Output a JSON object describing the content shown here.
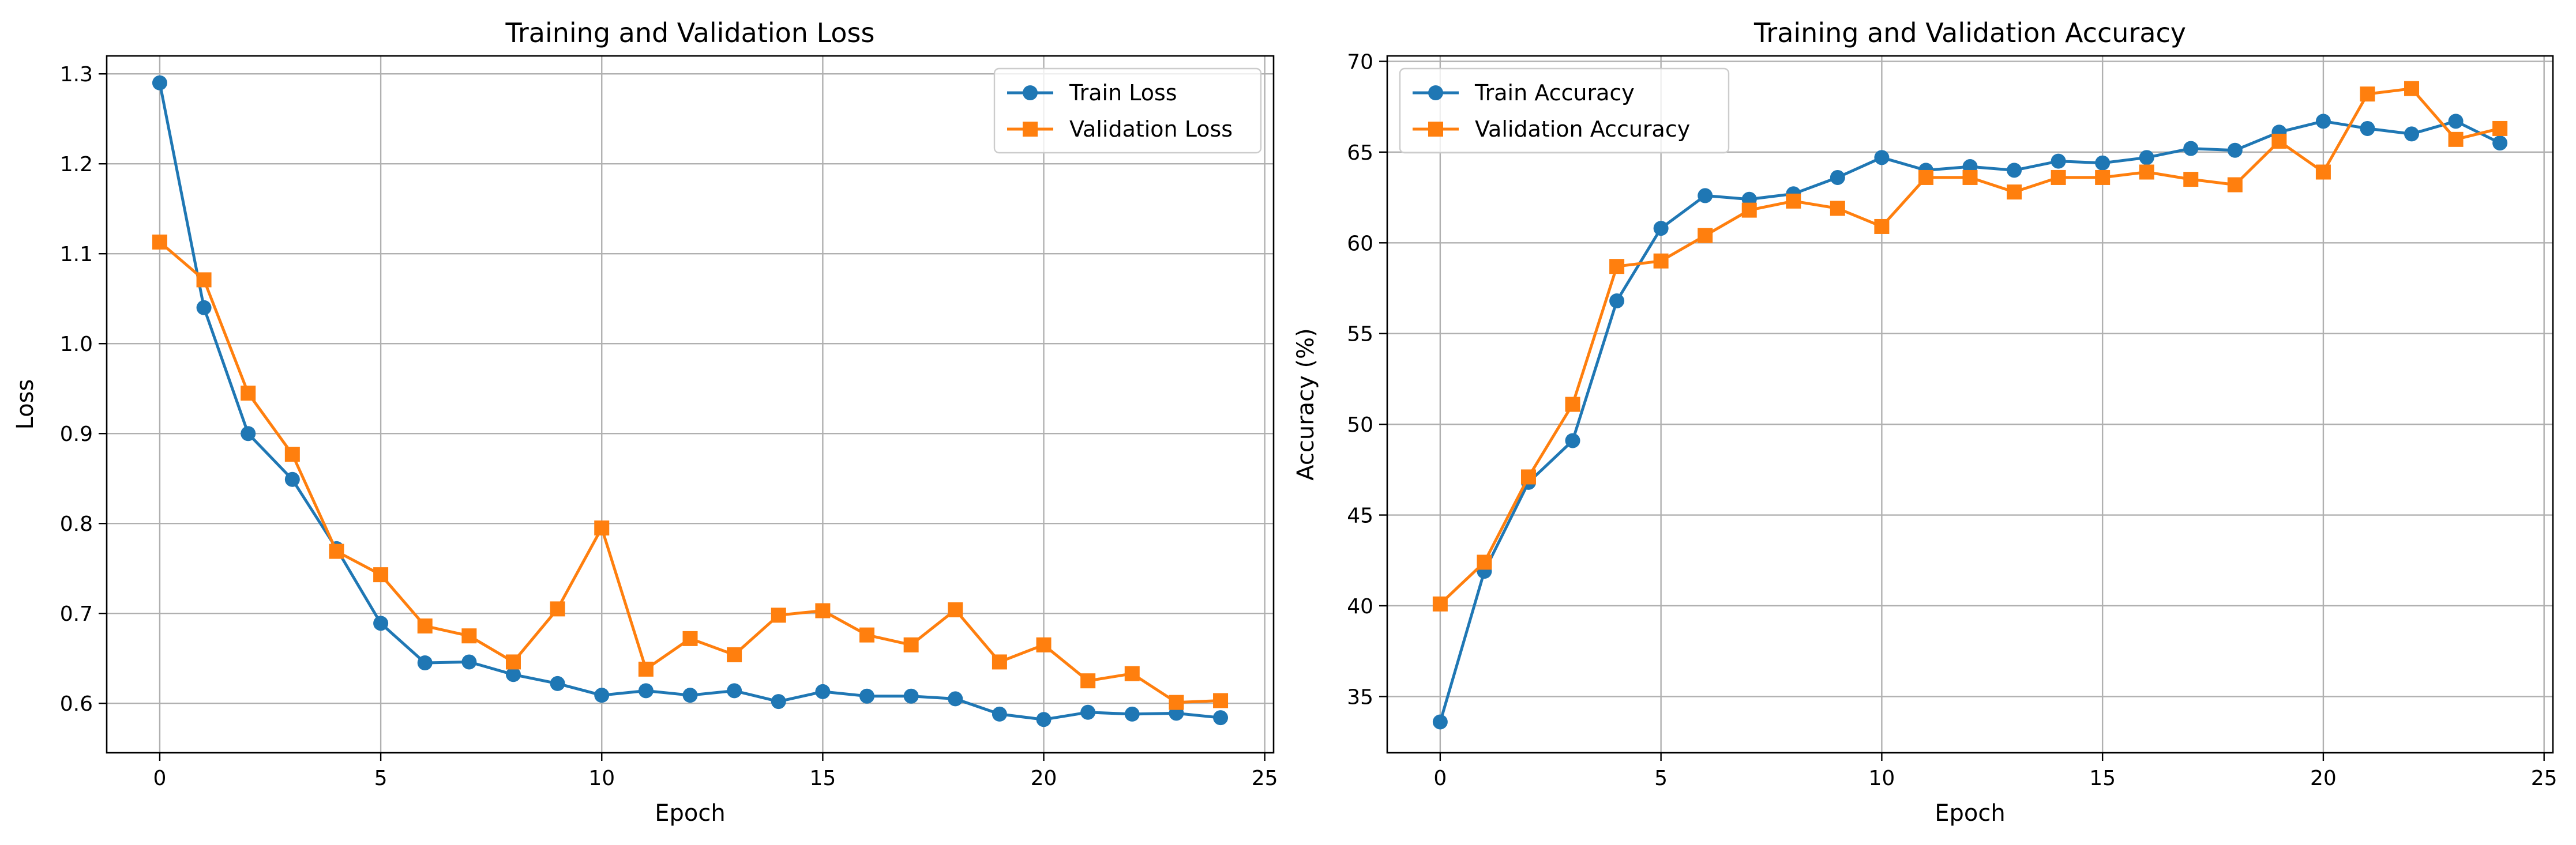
{
  "chart_data": [
    {
      "type": "line",
      "title": "Training and Validation Loss",
      "xlabel": "Epoch",
      "ylabel": "Loss",
      "xlim": [
        -1.2,
        25.2
      ],
      "ylim": [
        0.545,
        1.32
      ],
      "xticks": [
        0,
        5,
        10,
        15,
        20,
        25
      ],
      "yticks": [
        0.6,
        0.7,
        0.8,
        0.9,
        1.0,
        1.1,
        1.2,
        1.3
      ],
      "ytick_decimals": 1,
      "grid": true,
      "legend_position": "upper right",
      "x": [
        0,
        1,
        2,
        3,
        4,
        5,
        6,
        7,
        8,
        9,
        10,
        11,
        12,
        13,
        14,
        15,
        16,
        17,
        18,
        19,
        20,
        21,
        22,
        23,
        24
      ],
      "series": [
        {
          "name": "Train Loss",
          "color": "#1f77b4",
          "marker": "circle",
          "values": [
            1.29,
            1.04,
            0.9,
            0.849,
            0.772,
            0.689,
            0.645,
            0.646,
            0.632,
            0.622,
            0.609,
            0.614,
            0.609,
            0.614,
            0.602,
            0.613,
            0.608,
            0.608,
            0.605,
            0.588,
            0.582,
            0.59,
            0.588,
            0.589,
            0.584
          ]
        },
        {
          "name": "Validation Loss",
          "color": "#ff7f0e",
          "marker": "square",
          "values": [
            1.113,
            1.071,
            0.945,
            0.877,
            0.769,
            0.743,
            0.686,
            0.675,
            0.646,
            0.705,
            0.795,
            0.638,
            0.672,
            0.654,
            0.698,
            0.703,
            0.676,
            0.665,
            0.704,
            0.646,
            0.665,
            0.625,
            0.633,
            0.601,
            0.603
          ]
        }
      ]
    },
    {
      "type": "line",
      "title": "Training and Validation Accuracy",
      "xlabel": "Epoch",
      "ylabel": "Accuracy (%)",
      "xlim": [
        -1.2,
        25.2
      ],
      "ylim": [
        31.9,
        70.3
      ],
      "xticks": [
        0,
        5,
        10,
        15,
        20,
        25
      ],
      "yticks": [
        35,
        40,
        45,
        50,
        55,
        60,
        65,
        70
      ],
      "ytick_decimals": 0,
      "grid": true,
      "legend_position": "upper left",
      "x": [
        0,
        1,
        2,
        3,
        4,
        5,
        6,
        7,
        8,
        9,
        10,
        11,
        12,
        13,
        14,
        15,
        16,
        17,
        18,
        19,
        20,
        21,
        22,
        23,
        24
      ],
      "series": [
        {
          "name": "Train Accuracy",
          "color": "#1f77b4",
          "marker": "circle",
          "values": [
            33.6,
            41.9,
            46.8,
            49.1,
            56.8,
            60.8,
            62.6,
            62.4,
            62.7,
            63.6,
            64.7,
            64.0,
            64.2,
            64.0,
            64.5,
            64.4,
            64.7,
            65.2,
            65.1,
            66.1,
            66.7,
            66.3,
            66.0,
            66.7,
            65.5
          ]
        },
        {
          "name": "Validation Accuracy",
          "color": "#ff7f0e",
          "marker": "square",
          "values": [
            40.1,
            42.4,
            47.1,
            51.1,
            58.7,
            59.0,
            60.4,
            61.8,
            62.3,
            61.9,
            60.9,
            63.6,
            63.6,
            62.8,
            63.6,
            63.6,
            63.9,
            63.5,
            63.2,
            65.6,
            63.9,
            68.2,
            68.5,
            65.7,
            66.3
          ]
        }
      ]
    }
  ]
}
